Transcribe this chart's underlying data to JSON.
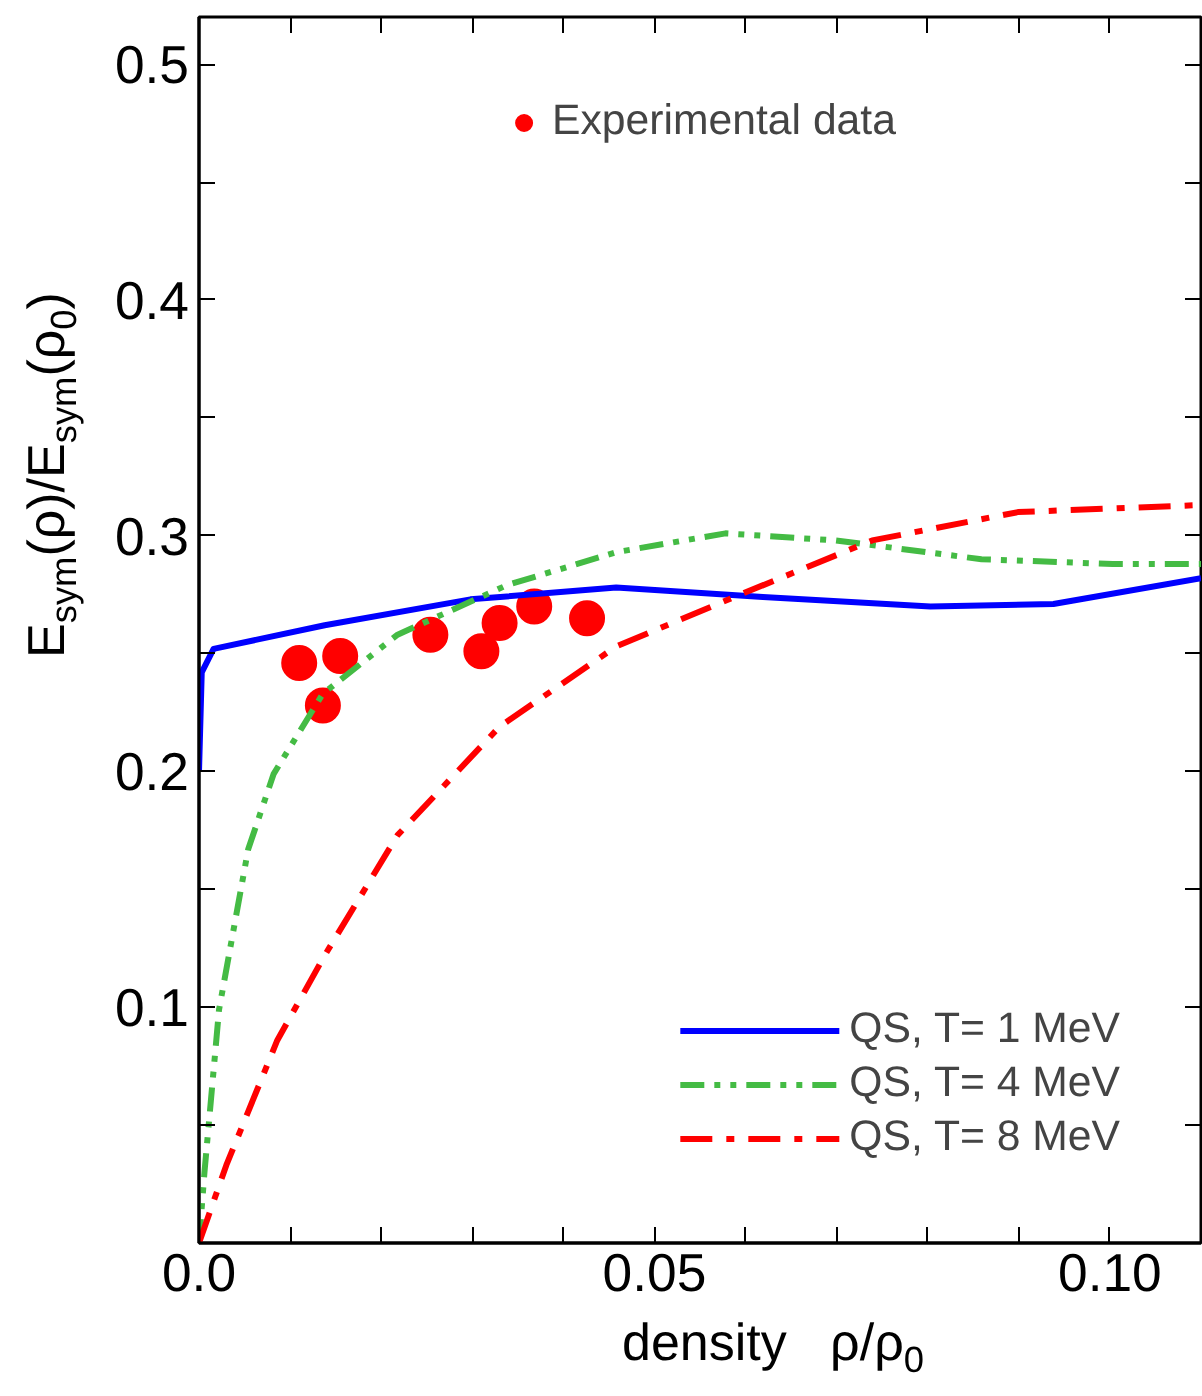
{
  "chart_data": {
    "type": "line",
    "xlabel": "density   ρ/ρ$_{0}$",
    "ylabel": "E$_{sym}$(ρ)/E$_{sym}$(ρ$_{0}$)",
    "xlim": [
      0,
      0.11
    ],
    "ylim": [
      0,
      0.52
    ],
    "xticks": [
      {
        "value": 0,
        "label": "0.0"
      },
      {
        "value": 0.01,
        "label": null
      },
      {
        "value": 0.02,
        "label": null
      },
      {
        "value": 0.03,
        "label": null
      },
      {
        "value": 0.04,
        "label": null
      },
      {
        "value": 0.05,
        "label": "0.05"
      },
      {
        "value": 0.06,
        "label": null
      },
      {
        "value": 0.07,
        "label": null
      },
      {
        "value": 0.08,
        "label": null
      },
      {
        "value": 0.09,
        "label": null
      },
      {
        "value": 0.1,
        "label": "0.10"
      }
    ],
    "yticks": [
      {
        "value": 0,
        "label": null
      },
      {
        "value": 0.05,
        "label": null
      },
      0.1,
      {
        "value": 0.15,
        "label": null
      },
      0.2,
      {
        "value": 0.25,
        "label": null
      },
      0.3,
      {
        "value": 0.35,
        "label": null
      },
      0.4,
      {
        "value": 0.45,
        "label": null
      },
      0.5
    ],
    "grid": false,
    "legend": "bottom right",
    "series": [
      {
        "name": "Experimental data",
        "type": "scatter",
        "marker": "circle",
        "color": "#ff0000",
        "x": [
          0.011,
          0.0136,
          0.0155,
          0.0254,
          0.031,
          0.033,
          0.0368,
          0.0426
        ],
        "values": [
          0.246,
          0.228,
          0.249,
          0.258,
          0.251,
          0.263,
          0.27,
          0.265
        ]
      },
      {
        "name": "QS, T= 1 MeV",
        "line_style": "solid",
        "color": "#0000ff",
        "x": [
          0,
          0.0003,
          0.0016,
          0.0138,
          0.0298,
          0.0458,
          0.0619,
          0.0803,
          0.0938,
          0.11
        ],
        "values": [
          0.2,
          0.242,
          0.252,
          0.262,
          0.273,
          0.278,
          0.274,
          0.27,
          0.271,
          0.282
        ]
      },
      {
        "name": "QS, T= 4 MeV",
        "line_style": "dashed",
        "color": "#44bb44",
        "x": [
          0,
          0.0006,
          0.0022,
          0.0054,
          0.0082,
          0.0136,
          0.0218,
          0.0338,
          0.0458,
          0.0578,
          0.0699,
          0.0859,
          0.1003,
          0.11
        ],
        "values": [
          0.0,
          0.03,
          0.099,
          0.167,
          0.199,
          0.233,
          0.258,
          0.279,
          0.293,
          0.301,
          0.298,
          0.29,
          0.288,
          0.288
        ]
      },
      {
        "name": "QS, T= 8 MeV",
        "line_style": "dashed",
        "color": "#ff0000",
        "x": [
          0,
          0.003,
          0.0086,
          0.0138,
          0.0218,
          0.033,
          0.0458,
          0.0594,
          0.0739,
          0.0899,
          0.11
        ],
        "values": [
          0.0,
          0.033,
          0.086,
          0.122,
          0.173,
          0.219,
          0.253,
          0.275,
          0.298,
          0.31,
          0.313
        ]
      }
    ]
  }
}
